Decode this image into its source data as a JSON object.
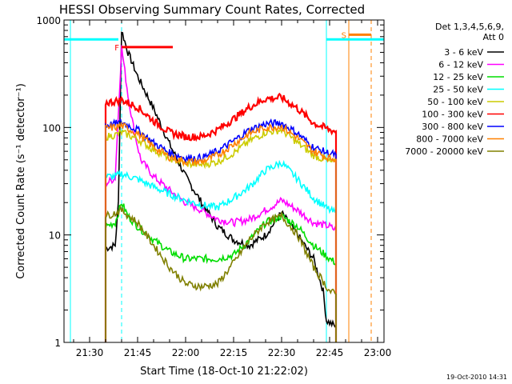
{
  "chart_data": {
    "type": "line",
    "title": "HESSI Observing Summary Count Rates, Corrected",
    "xlabel": "Start Time (18-Oct-10 21:22:02)",
    "ylabel": "Corrected Count Rate (s⁻¹ detector⁻¹)",
    "yscale": "log",
    "ylim": [
      1,
      1000
    ],
    "xlim": [
      "21:22",
      "23:02"
    ],
    "x_ticks": [
      "21:30",
      "21:45",
      "22:00",
      "22:15",
      "22:30",
      "22:45",
      "23:00"
    ],
    "y_ticks": [
      "1",
      "10",
      "100",
      "1000"
    ],
    "legend_header": [
      "Det 1,3,4,5,6,9,",
      "Att 0"
    ],
    "legend_position": "right",
    "footer_timestamp": "19-Oct-2010 14:31",
    "flags": [
      {
        "label": "F",
        "color": "#ff0000",
        "start": "21:40",
        "end": "21:56",
        "y": 560
      },
      {
        "label": "S",
        "color": "#ff8000",
        "start": "22:51",
        "end": "22:58",
        "y": 730
      }
    ],
    "night_bars": [
      {
        "color": "#00ffff",
        "start": "21:22",
        "end": "21:39",
        "y": 660
      },
      {
        "color": "#00ffff",
        "start": "22:44",
        "end": "23:02",
        "y": 660
      }
    ],
    "vlines": [
      {
        "t": "21:24",
        "color": "#00ffff",
        "style": "solid"
      },
      {
        "t": "21:40",
        "color": "#00ffff",
        "style": "dashed"
      },
      {
        "t": "22:44",
        "color": "#00ffff",
        "style": "solid"
      },
      {
        "t": "22:51",
        "color": "#ff8000",
        "style": "solid"
      },
      {
        "t": "22:58",
        "color": "#ff8000",
        "style": "dashed"
      }
    ],
    "series": [
      {
        "name": "3 - 6 keV",
        "color": "#000000",
        "points": [
          [
            "21:35",
            7.5
          ],
          [
            "21:38",
            8
          ],
          [
            "21:39",
            20
          ],
          [
            "21:40",
            800
          ],
          [
            "21:42",
            500
          ],
          [
            "21:45",
            300
          ],
          [
            "21:50",
            150
          ],
          [
            "21:55",
            70
          ],
          [
            "22:00",
            35
          ],
          [
            "22:05",
            20
          ],
          [
            "22:10",
            12
          ],
          [
            "22:15",
            9
          ],
          [
            "22:20",
            8
          ],
          [
            "22:25",
            10
          ],
          [
            "22:30",
            16
          ],
          [
            "22:35",
            10
          ],
          [
            "22:40",
            6
          ],
          [
            "22:43",
            3
          ],
          [
            "22:44",
            1.6
          ],
          [
            "22:47",
            1.4
          ]
        ]
      },
      {
        "name": "6 - 12 keV",
        "color": "#ff00ff",
        "points": [
          [
            "21:35",
            30
          ],
          [
            "21:38",
            34
          ],
          [
            "21:40",
            560
          ],
          [
            "21:42",
            200
          ],
          [
            "21:44",
            90
          ],
          [
            "21:46",
            50
          ],
          [
            "21:50",
            35
          ],
          [
            "21:55",
            26
          ],
          [
            "22:00",
            20
          ],
          [
            "22:05",
            17
          ],
          [
            "22:10",
            14
          ],
          [
            "22:15",
            13
          ],
          [
            "22:20",
            14
          ],
          [
            "22:25",
            17
          ],
          [
            "22:30",
            21
          ],
          [
            "22:35",
            17
          ],
          [
            "22:40",
            13
          ],
          [
            "22:45",
            12
          ],
          [
            "22:47",
            11
          ]
        ]
      },
      {
        "name": "12 - 25 keV",
        "color": "#00dd00",
        "points": [
          [
            "21:35",
            12
          ],
          [
            "21:38",
            13
          ],
          [
            "21:40",
            20
          ],
          [
            "21:42",
            15
          ],
          [
            "21:45",
            12
          ],
          [
            "21:50",
            9
          ],
          [
            "21:55",
            7
          ],
          [
            "22:00",
            6
          ],
          [
            "22:05",
            6
          ],
          [
            "22:10",
            6
          ],
          [
            "22:15",
            6.5
          ],
          [
            "22:20",
            9
          ],
          [
            "22:25",
            13
          ],
          [
            "22:30",
            15
          ],
          [
            "22:35",
            12
          ],
          [
            "22:40",
            8
          ],
          [
            "22:45",
            6
          ],
          [
            "22:47",
            5.5
          ]
        ]
      },
      {
        "name": "25 - 50 keV",
        "color": "#00ffff",
        "points": [
          [
            "21:35",
            35
          ],
          [
            "21:38",
            35
          ],
          [
            "21:40",
            37
          ],
          [
            "21:45",
            33
          ],
          [
            "21:50",
            28
          ],
          [
            "21:55",
            24
          ],
          [
            "22:00",
            21
          ],
          [
            "22:05",
            19
          ],
          [
            "22:10",
            18
          ],
          [
            "22:15",
            22
          ],
          [
            "22:20",
            28
          ],
          [
            "22:25",
            40
          ],
          [
            "22:30",
            47
          ],
          [
            "22:35",
            33
          ],
          [
            "22:40",
            22
          ],
          [
            "22:45",
            17
          ],
          [
            "22:47",
            16
          ]
        ]
      },
      {
        "name": "50 - 100 keV",
        "color": "#cccc00",
        "points": [
          [
            "21:35",
            82
          ],
          [
            "21:38",
            85
          ],
          [
            "21:40",
            90
          ],
          [
            "21:45",
            78
          ],
          [
            "21:50",
            62
          ],
          [
            "21:55",
            52
          ],
          [
            "22:00",
            46
          ],
          [
            "22:05",
            45
          ],
          [
            "22:10",
            48
          ],
          [
            "22:15",
            58
          ],
          [
            "22:20",
            75
          ],
          [
            "22:25",
            90
          ],
          [
            "22:30",
            95
          ],
          [
            "22:35",
            72
          ],
          [
            "22:40",
            55
          ],
          [
            "22:45",
            48
          ],
          [
            "22:47",
            47
          ]
        ]
      },
      {
        "name": "100 - 300 keV",
        "color": "#ff0000",
        "points": [
          [
            "21:35",
            170
          ],
          [
            "21:38",
            175
          ],
          [
            "21:40",
            180
          ],
          [
            "21:45",
            155
          ],
          [
            "21:50",
            115
          ],
          [
            "21:55",
            90
          ],
          [
            "22:00",
            82
          ],
          [
            "22:05",
            82
          ],
          [
            "22:10",
            95
          ],
          [
            "22:15",
            120
          ],
          [
            "22:20",
            155
          ],
          [
            "22:25",
            185
          ],
          [
            "22:30",
            190
          ],
          [
            "22:35",
            150
          ],
          [
            "22:40",
            110
          ],
          [
            "22:45",
            95
          ],
          [
            "22:47",
            92
          ]
        ]
      },
      {
        "name": "300 - 800 keV",
        "color": "#0000ff",
        "points": [
          [
            "21:35",
            105
          ],
          [
            "21:38",
            108
          ],
          [
            "21:40",
            112
          ],
          [
            "21:45",
            95
          ],
          [
            "21:50",
            72
          ],
          [
            "21:55",
            58
          ],
          [
            "22:00",
            52
          ],
          [
            "22:05",
            52
          ],
          [
            "22:10",
            60
          ],
          [
            "22:15",
            75
          ],
          [
            "22:20",
            95
          ],
          [
            "22:25",
            108
          ],
          [
            "22:30",
            110
          ],
          [
            "22:35",
            88
          ],
          [
            "22:40",
            65
          ],
          [
            "22:45",
            57
          ],
          [
            "22:47",
            56
          ]
        ]
      },
      {
        "name": "800 - 7000 keV",
        "color": "#ff8000",
        "points": [
          [
            "21:35",
            98
          ],
          [
            "21:38",
            100
          ],
          [
            "21:40",
            104
          ],
          [
            "21:45",
            88
          ],
          [
            "21:50",
            66
          ],
          [
            "21:55",
            53
          ],
          [
            "22:00",
            48
          ],
          [
            "22:05",
            48
          ],
          [
            "22:10",
            55
          ],
          [
            "22:15",
            70
          ],
          [
            "22:20",
            88
          ],
          [
            "22:25",
            100
          ],
          [
            "22:30",
            102
          ],
          [
            "22:35",
            80
          ],
          [
            "22:40",
            60
          ],
          [
            "22:45",
            52
          ],
          [
            "22:47",
            51
          ]
        ]
      },
      {
        "name": "7000 - 20000 keV",
        "color": "#808000",
        "points": [
          [
            "21:35",
            15
          ],
          [
            "21:38",
            16
          ],
          [
            "21:40",
            17
          ],
          [
            "21:45",
            13
          ],
          [
            "21:50",
            8
          ],
          [
            "21:55",
            5
          ],
          [
            "22:00",
            3.5
          ],
          [
            "22:05",
            3.3
          ],
          [
            "22:10",
            3.5
          ],
          [
            "22:15",
            5.5
          ],
          [
            "22:20",
            9
          ],
          [
            "22:25",
            13
          ],
          [
            "22:30",
            15
          ],
          [
            "22:35",
            10
          ],
          [
            "22:40",
            5
          ],
          [
            "22:45",
            3
          ],
          [
            "22:47",
            2.8
          ]
        ]
      }
    ]
  }
}
